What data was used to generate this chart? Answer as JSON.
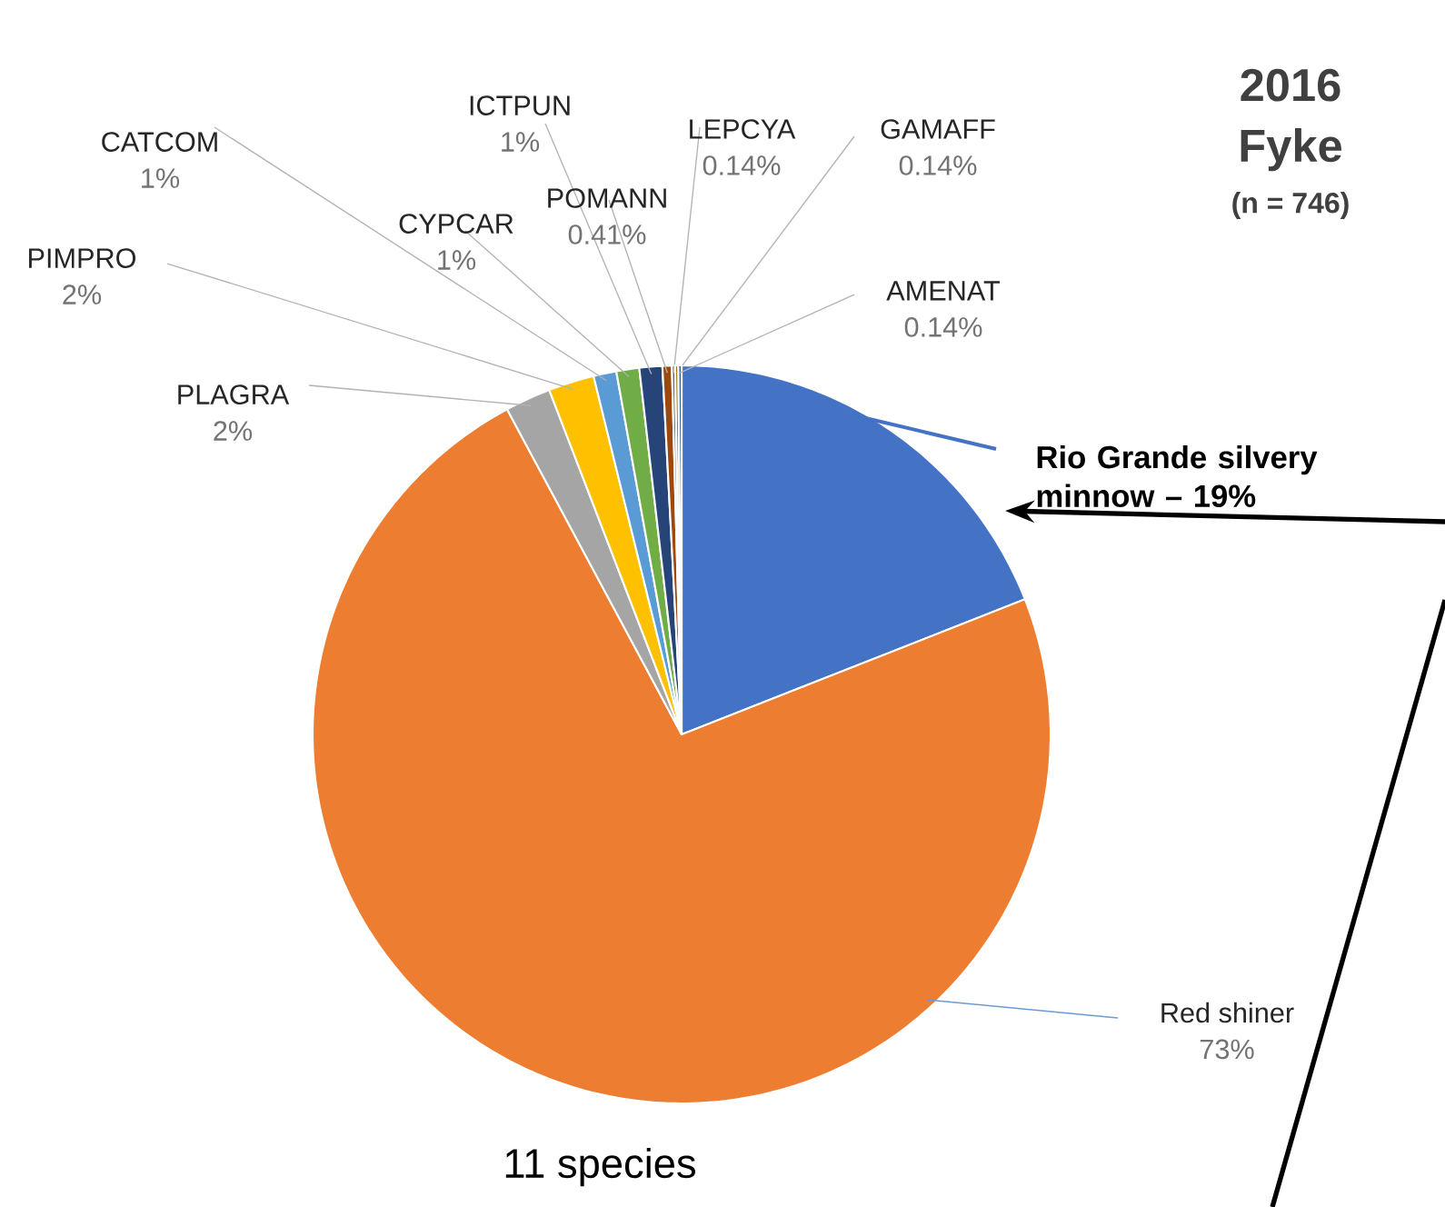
{
  "chart_data": {
    "type": "pie",
    "title": "2016 Fyke",
    "subtitle": "(n = 746)",
    "categories": [
      "Rio Grande silvery minnow – 19%",
      "Red shiner",
      "PLAGRA",
      "PIMPRO",
      "CATCOM",
      "CYPCAR",
      "ICTPUN",
      "POMANN",
      "LEPCYA",
      "GAMAFF",
      "AMENAT"
    ],
    "values": [
      19,
      73,
      2,
      2,
      1,
      1,
      1,
      0.41,
      0.14,
      0.14,
      0.14
    ],
    "value_labels": [
      null,
      "73%",
      "2%",
      "2%",
      "1%",
      "1%",
      "1%",
      "0.41%",
      "0.14%",
      "0.14%",
      "0.14%"
    ],
    "colors": [
      "#4472c4",
      "#ed7d31",
      "#a5a5a5",
      "#ffc000",
      "#5b9bd5",
      "#70ad47",
      "#264478",
      "#9e480e",
      "#636363",
      "#997300",
      "#255e91"
    ],
    "annotations": [
      "11 species"
    ]
  }
}
